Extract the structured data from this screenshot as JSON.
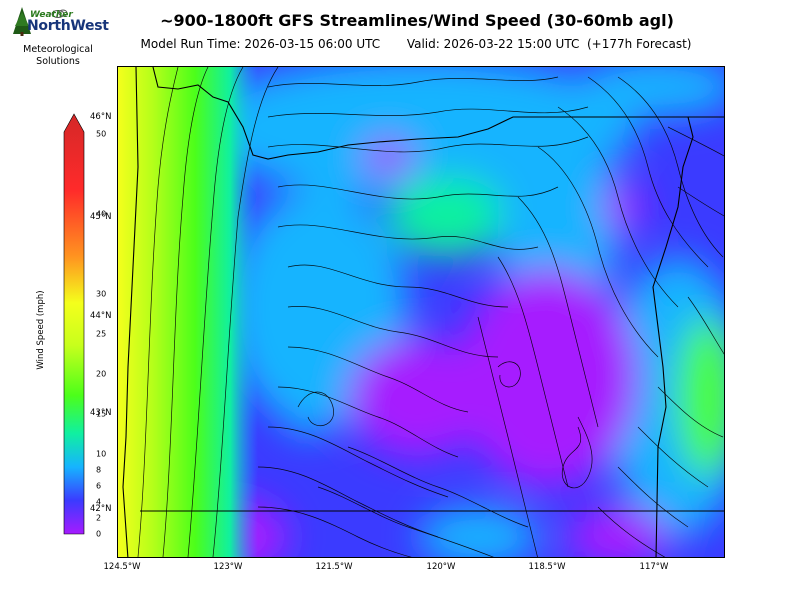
{
  "header": {
    "title": "~900-1800ft GFS Streamlines/Wind Speed (30-60mb agl)",
    "subtitle": "Model Run Time: 2026-03-15 06:00 UTC       Valid: 2026-03-22 15:00 UTC  (+177h Forecast)"
  },
  "logo": {
    "brand_top": "Weather",
    "brand": "NorthWest",
    "caption_line1": "Meteorological",
    "caption_line2": "Solutions"
  },
  "map": {
    "lat_labels": [
      "46°N",
      "45°N",
      "44°N",
      "43°N",
      "42°N"
    ],
    "lon_labels": [
      "124.5°W",
      "123°W",
      "121.5°W",
      "120°W",
      "118.5°W",
      "117°W"
    ]
  },
  "colorbar": {
    "label": "Wind Speed (mph)",
    "ticks": [
      "0",
      "2",
      "4",
      "6",
      "8",
      "10",
      "15",
      "20",
      "25",
      "30",
      "40",
      "50"
    ],
    "colors": {
      "calm": "#a61bff",
      "light": "#3b3bff",
      "moderate": "#16b4ff",
      "breezy": "#10f0a0",
      "windy": "#4cff1a",
      "strong": "#f4ff1c",
      "high": "#ff9420",
      "extreme": "#e62a2a"
    }
  }
}
